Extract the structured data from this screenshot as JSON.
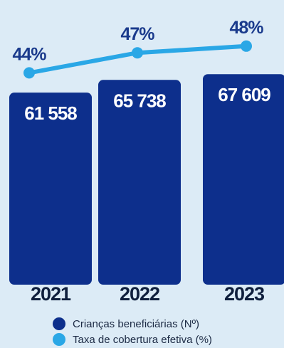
{
  "chart_data": {
    "type": "bar",
    "categories": [
      "2021",
      "2022",
      "2023"
    ],
    "series": [
      {
        "name": "Crianças beneficiárias (Nº)",
        "kind": "bar",
        "values": [
          61558,
          65738,
          67609
        ],
        "labels": [
          "61 558",
          "65 738",
          "67 609"
        ],
        "color": "#0d2f8c"
      },
      {
        "name": "Taxa de cobertura efetiva (%)",
        "kind": "line",
        "values": [
          44,
          47,
          48
        ],
        "labels": [
          "44%",
          "47%",
          "48%"
        ],
        "color": "#2aa7e6"
      }
    ],
    "bar_ylim": [
      0,
      70000
    ],
    "line_ylim": [
      40,
      50
    ],
    "grid": false,
    "legend_position": "bottom"
  },
  "colors": {
    "background": "#dcebf6",
    "bar": "#0d2f8c",
    "line": "#2aa7e6"
  }
}
